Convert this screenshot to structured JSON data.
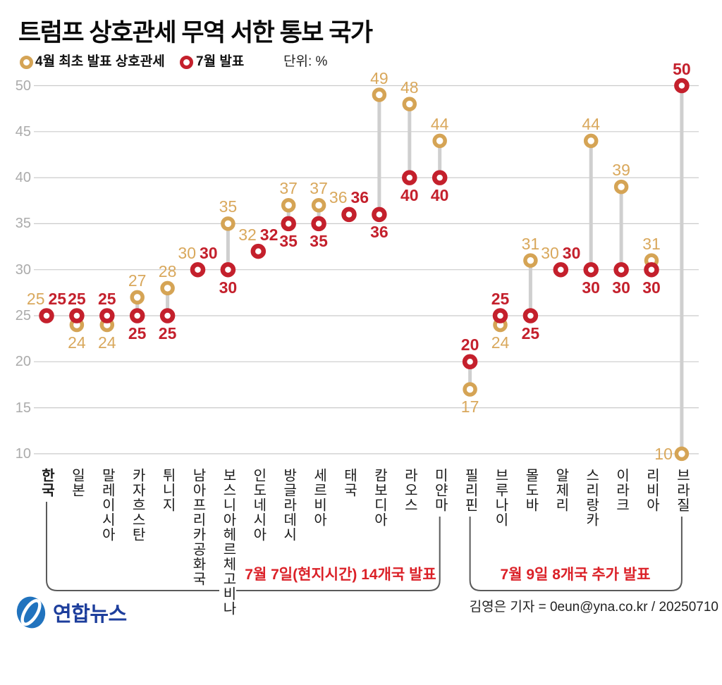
{
  "title": "트럼프 상호관세 무역 서한 통보 국가",
  "legend": {
    "april": "4월 최초 발표 상호관세",
    "july": "7월 발표",
    "unit": "단위: %"
  },
  "colors": {
    "april": "#d5a455",
    "april_text": "#d9a85c",
    "july": "#c4202c",
    "july_text": "#c4202c",
    "annotation": "#db2128",
    "grid": "#cbcbcb",
    "connector": "#cfcfcf",
    "tick_text": "#ababab",
    "country_text": "#1a1a1a",
    "bracket_line": "#5a5a5a",
    "logo_blue": "#2173be",
    "logo_text_color": "#1d3e9c"
  },
  "chart_data": {
    "type": "scatter",
    "subtype": "dumbbell",
    "title": "트럼프 상호관세 무역 서한 통보 국가",
    "unit": "%",
    "ylim": [
      10,
      50
    ],
    "yticks": [
      50,
      45,
      40,
      35,
      30,
      25,
      20,
      15,
      10
    ],
    "grid": "horizontal",
    "legend_position": "top-left",
    "categories": [
      "한국",
      "일본",
      "말레이시아",
      "카자흐스탄",
      "튀니지",
      "남아프리카공화국",
      "보스니아헤르체고비나",
      "인도네시아",
      "방글라데시",
      "세르비아",
      "태국",
      "캄보디아",
      "라오스",
      "미얀마",
      "필리핀",
      "브루나이",
      "몰도바",
      "알제리",
      "스리랑카",
      "이라크",
      "리비아",
      "브라질"
    ],
    "bold_category_index": 0,
    "series": [
      {
        "name": "4월 최초 발표 상호관세",
        "values": [
          25,
          24,
          24,
          27,
          28,
          30,
          35,
          32,
          37,
          37,
          36,
          49,
          48,
          44,
          17,
          24,
          31,
          30,
          44,
          39,
          31,
          10
        ]
      },
      {
        "name": "7월 발표",
        "values": [
          25,
          25,
          25,
          25,
          25,
          30,
          30,
          32,
          35,
          35,
          36,
          36,
          40,
          40,
          20,
          25,
          25,
          30,
          30,
          30,
          30,
          50
        ]
      }
    ],
    "label_overrides": [
      {
        "index": 21,
        "april": "left"
      }
    ],
    "groups": [
      {
        "label": "7월 7일(현지시간) 14개국 발표",
        "start": 0,
        "end": 13
      },
      {
        "label": "7월 9일 8개국 추가 발표",
        "start": 14,
        "end": 21
      }
    ]
  },
  "footer": {
    "logo_text": "연합뉴스",
    "credit": "김영은 기자 = 0eun@yna.co.kr / 20250710"
  }
}
